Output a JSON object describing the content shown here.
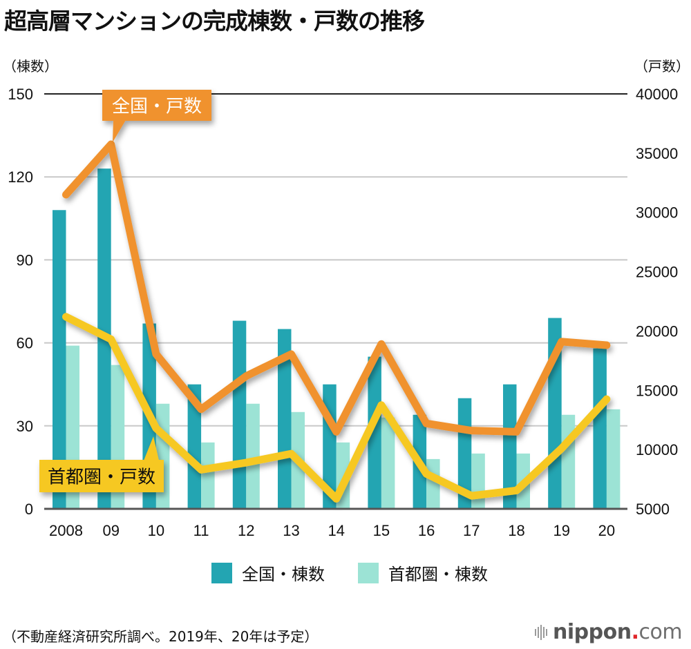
{
  "title": "超高層マンションの完成棟数・戸数の推移",
  "left_axis_unit": "（棟数）",
  "right_axis_unit": "（戸数）",
  "footer_note": "（不動産経済研究所調べ。2019年、20年は予定）",
  "brand": {
    "icon": "sound-wave-icon",
    "name": "nippon",
    "dot": ".",
    "suffix": "com"
  },
  "colors": {
    "national_buildings": "#23a5b2",
    "metro_buildings": "#9ce3d5",
    "national_units": "#f0922e",
    "metro_units": "#f6c824",
    "grid": "#c8c8c8",
    "axis_top": "#222222",
    "axis_bottom": "#555555"
  },
  "chart_data": {
    "type": "bar+line",
    "title": "超高層マンションの完成棟数・戸数の推移",
    "categories": [
      "2008",
      "09",
      "10",
      "11",
      "12",
      "13",
      "14",
      "15",
      "16",
      "17",
      "18",
      "19",
      "20"
    ],
    "left_axis": {
      "label": "（棟数）",
      "range": [
        0,
        150
      ],
      "ticks": [
        0,
        30,
        60,
        90,
        120,
        150
      ]
    },
    "right_axis": {
      "label": "（戸数）",
      "range": [
        5000,
        40000
      ],
      "ticks": [
        5000,
        10000,
        15000,
        20000,
        25000,
        30000,
        35000,
        40000
      ]
    },
    "grid": true,
    "legend_position": "bottom",
    "bar_series": [
      {
        "name": "全国・棟数",
        "axis": "left",
        "values": [
          108,
          123,
          67,
          45,
          68,
          65,
          45,
          55,
          34,
          40,
          45,
          69,
          58
        ]
      },
      {
        "name": "首都圏・棟数",
        "axis": "left",
        "values": [
          59,
          52,
          38,
          24,
          38,
          35,
          24,
          33,
          18,
          20,
          20,
          34,
          36
        ]
      }
    ],
    "line_series": [
      {
        "name": "全国・戸数",
        "axis": "right",
        "callout": "全国・戸数",
        "values": [
          31500,
          35750,
          18050,
          13400,
          16200,
          18050,
          11500,
          18900,
          12200,
          11600,
          11500,
          19100,
          18800
        ]
      },
      {
        "name": "首都圏・戸数",
        "axis": "right",
        "callout": "首都圏・戸数",
        "values": [
          21200,
          19300,
          11800,
          8300,
          8900,
          9650,
          5850,
          13750,
          7950,
          6100,
          6550,
          10100,
          14250
        ]
      }
    ]
  }
}
